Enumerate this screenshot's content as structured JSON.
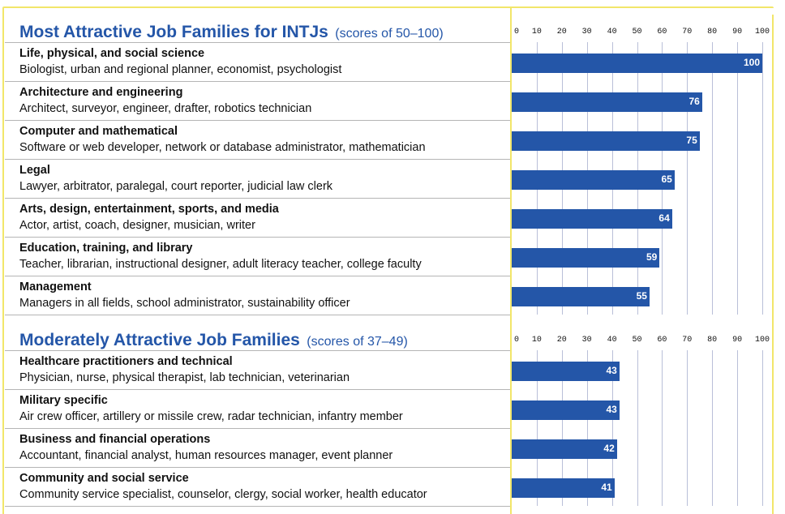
{
  "chart_data": [
    {
      "type": "bar",
      "orientation": "horizontal",
      "title": "Most Attractive Job Families for INTJs",
      "subtitle": "(scores of 50–100)",
      "xlim": [
        0,
        100
      ],
      "ticks": [
        0,
        10,
        20,
        30,
        40,
        50,
        60,
        70,
        80,
        90,
        100
      ],
      "grid": true,
      "categories": [
        {
          "name": "Life, physical, and social science",
          "examples": "Biologist, urban and regional planner, economist, psychologist",
          "value": 100
        },
        {
          "name": "Architecture and engineering",
          "examples": "Architect, surveyor, engineer, drafter, robotics technician",
          "value": 76
        },
        {
          "name": "Computer and mathematical",
          "examples": "Software or web developer, network or database administrator, mathematician",
          "value": 75
        },
        {
          "name": "Legal",
          "examples": "Lawyer, arbitrator, paralegal, court reporter, judicial law clerk",
          "value": 65
        },
        {
          "name": "Arts, design, entertainment, sports, and media",
          "examples": "Actor, artist, coach, designer, musician, writer",
          "value": 64
        },
        {
          "name": "Education, training, and library",
          "examples": "Teacher, librarian, instructional designer, adult literacy teacher, college faculty",
          "value": 59
        },
        {
          "name": "Management",
          "examples": "Managers in all fields, school administrator, sustainability officer",
          "value": 55
        }
      ]
    },
    {
      "type": "bar",
      "orientation": "horizontal",
      "title": "Moderately Attractive Job Families",
      "subtitle": "(scores of 37–49)",
      "xlim": [
        0,
        100
      ],
      "ticks": [
        0,
        10,
        20,
        30,
        40,
        50,
        60,
        70,
        80,
        90,
        100
      ],
      "grid": true,
      "categories": [
        {
          "name": "Healthcare practitioners and technical",
          "examples": "Physician, nurse, physical therapist, lab technician, veterinarian",
          "value": 43
        },
        {
          "name": "Military specific",
          "examples": "Air crew officer, artillery or missile crew, radar technician, infantry member",
          "value": 43
        },
        {
          "name": "Business and financial operations",
          "examples": "Accountant, financial analyst, human resources manager, event planner",
          "value": 42
        },
        {
          "name": "Community and social service",
          "examples": "Community service specialist, counselor, clergy, social worker, health educator",
          "value": 41
        }
      ]
    }
  ],
  "colors": {
    "bar": "#2456a8",
    "title": "#2456a8",
    "frame": "#f2e66a",
    "grid": "#b9bfd8",
    "rule": "#b5b5b5"
  }
}
